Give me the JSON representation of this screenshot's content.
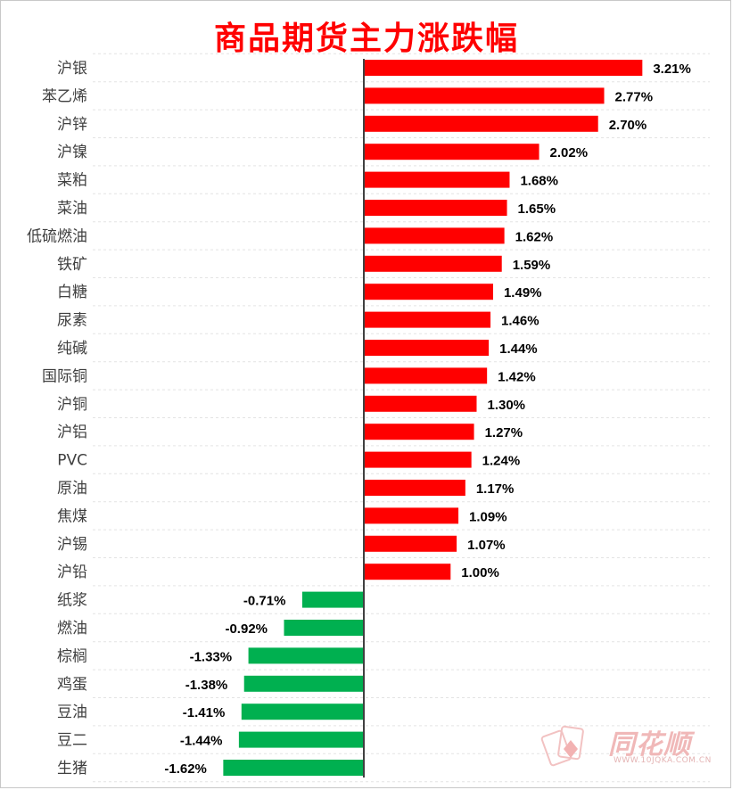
{
  "chart_data": {
    "type": "bar",
    "orientation": "horizontal",
    "title": "商品期货主力涨跌幅",
    "categories": [
      "沪银",
      "苯乙烯",
      "沪锌",
      "沪镍",
      "菜粕",
      "菜油",
      "低硫燃油",
      "铁矿",
      "白糖",
      "尿素",
      "纯碱",
      "国际铜",
      "沪铜",
      "沪铝",
      "PVC",
      "原油",
      "焦煤",
      "沪锡",
      "沪铅",
      "纸浆",
      "燃油",
      "棕榈",
      "鸡蛋",
      "豆油",
      "豆二",
      "生猪"
    ],
    "values": [
      3.21,
      2.77,
      2.7,
      2.02,
      1.68,
      1.65,
      1.62,
      1.59,
      1.49,
      1.46,
      1.44,
      1.42,
      1.3,
      1.27,
      1.24,
      1.17,
      1.09,
      1.07,
      1.0,
      -0.71,
      -0.92,
      -1.33,
      -1.38,
      -1.41,
      -1.44,
      -1.62
    ],
    "data_labels": [
      "3.21%",
      "2.77%",
      "2.70%",
      "2.02%",
      "1.68%",
      "1.65%",
      "1.62%",
      "1.59%",
      "1.49%",
      "1.46%",
      "1.44%",
      "1.42%",
      "1.30%",
      "1.27%",
      "1.24%",
      "1.17%",
      "1.09%",
      "1.07%",
      "1.00%",
      "-0.71%",
      "-0.92%",
      "-1.33%",
      "-1.38%",
      "-1.41%",
      "-1.44%",
      "-1.62%"
    ],
    "positive_color": "#ff0000",
    "negative_color": "#00b050",
    "xlim": [
      -2.0,
      3.4
    ],
    "grid": true,
    "legend": "none"
  },
  "watermark": {
    "name": "同花顺",
    "url": "WWW.10JQKA.COM.CN"
  }
}
